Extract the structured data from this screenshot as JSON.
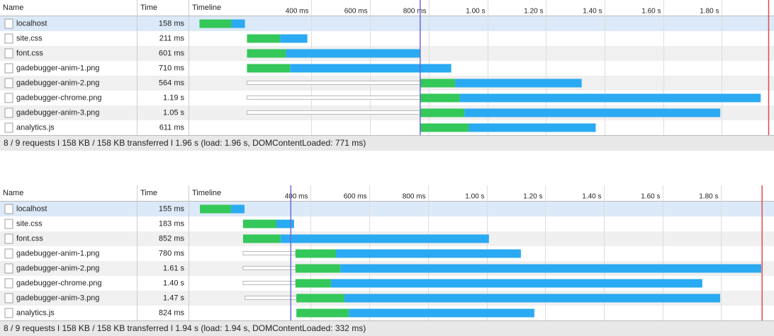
{
  "colors": {
    "queued": "#ffffff",
    "waiting": "#34c759",
    "receiving": "#2aaaf2",
    "dom_content_loaded": "#6b6bd6",
    "load": "#e0494f"
  },
  "panels": [
    {
      "header": {
        "name": "Name",
        "time": "Time",
        "timeline": "Timeline"
      },
      "ticks": [
        {
          "value": 400,
          "label": "400 ms"
        },
        {
          "value": 600,
          "label": "600 ms"
        },
        {
          "value": 800,
          "label": "800 ms"
        },
        {
          "value": 1000,
          "label": "1.00 s"
        },
        {
          "value": 1200,
          "label": "1.20 s"
        },
        {
          "value": 1400,
          "label": "1.40 s"
        },
        {
          "value": 1600,
          "label": "1.60 s"
        },
        {
          "value": 1800,
          "label": "1.80 s"
        }
      ],
      "dom_content_loaded_ms": 771,
      "load_ms": 1960,
      "rows": [
        {
          "name": "localhost",
          "time": "158 ms",
          "queued": null,
          "start": 18,
          "waiting_end": 127,
          "end": 173
        },
        {
          "name": "site.css",
          "time": "211 ms",
          "queued": null,
          "start": 180,
          "waiting_end": 293,
          "end": 386
        },
        {
          "name": "font.css",
          "time": "601 ms",
          "queued": null,
          "start": 180,
          "waiting_end": 313,
          "end": 772
        },
        {
          "name": "gadebugger-anim-1.png",
          "time": "710 ms",
          "queued": null,
          "start": 180,
          "waiting_end": 327,
          "end": 877
        },
        {
          "name": "gadebugger-anim-2.png",
          "time": "564 ms",
          "queued": 180,
          "start": 772,
          "waiting_end": 891,
          "end": 1322
        },
        {
          "name": "gadebugger-chrome.png",
          "time": "1.19 s",
          "queued": 180,
          "start": 772,
          "waiting_end": 906,
          "end": 1933
        },
        {
          "name": "gadebugger-anim-3.png",
          "time": "1.05 s",
          "queued": 180,
          "start": 772,
          "waiting_end": 922,
          "end": 1795
        },
        {
          "name": "analytics.js",
          "time": "611 ms",
          "queued": null,
          "start": 772,
          "waiting_end": 937,
          "end": 1370
        }
      ],
      "status": "8 / 9 requests ǀ 158 KB / 158 KB transferred ǀ 1.96 s (load: 1.96 s, DOMContentLoaded: 771 ms)"
    },
    {
      "header": {
        "name": "Name",
        "time": "Time",
        "timeline": "Timeline"
      },
      "ticks": [
        {
          "value": 400,
          "label": "400 ms"
        },
        {
          "value": 600,
          "label": "600 ms"
        },
        {
          "value": 800,
          "label": "800 ms"
        },
        {
          "value": 1000,
          "label": "1.00 s"
        },
        {
          "value": 1200,
          "label": "1.20 s"
        },
        {
          "value": 1400,
          "label": "1.40 s"
        },
        {
          "value": 1600,
          "label": "1.60 s"
        },
        {
          "value": 1800,
          "label": "1.80 s"
        }
      ],
      "dom_content_loaded_ms": 332,
      "load_ms": 1940,
      "rows": [
        {
          "name": "localhost",
          "time": "155 ms",
          "queued": null,
          "start": 22,
          "waiting_end": 128,
          "end": 174
        },
        {
          "name": "site.css",
          "time": "183 ms",
          "queued": null,
          "start": 169,
          "waiting_end": 283,
          "end": 343
        },
        {
          "name": "font.css",
          "time": "852 ms",
          "queued": null,
          "start": 169,
          "waiting_end": 297,
          "end": 1008
        },
        {
          "name": "gadebugger-anim-1.png",
          "time": "780 ms",
          "queued": 169,
          "start": 348,
          "waiting_end": 486,
          "end": 1117
        },
        {
          "name": "gadebugger-anim-2.png",
          "time": "1.61 s",
          "queued": 169,
          "start": 348,
          "waiting_end": 501,
          "end": 1937
        },
        {
          "name": "gadebugger-chrome.png",
          "time": "1.40 s",
          "queued": 169,
          "start": 348,
          "waiting_end": 469,
          "end": 1736
        },
        {
          "name": "gadebugger-anim-3.png",
          "time": "1.47 s",
          "queued": 176,
          "start": 351,
          "waiting_end": 515,
          "end": 1797
        },
        {
          "name": "analytics.js",
          "time": "824 ms",
          "queued": null,
          "start": 351,
          "waiting_end": 530,
          "end": 1163
        }
      ],
      "status": "8 / 9 requests ǀ 158 KB / 158 KB transferred ǀ 1.94 s (load: 1.94 s, DOMContentLoaded: 332 ms)"
    }
  ]
}
